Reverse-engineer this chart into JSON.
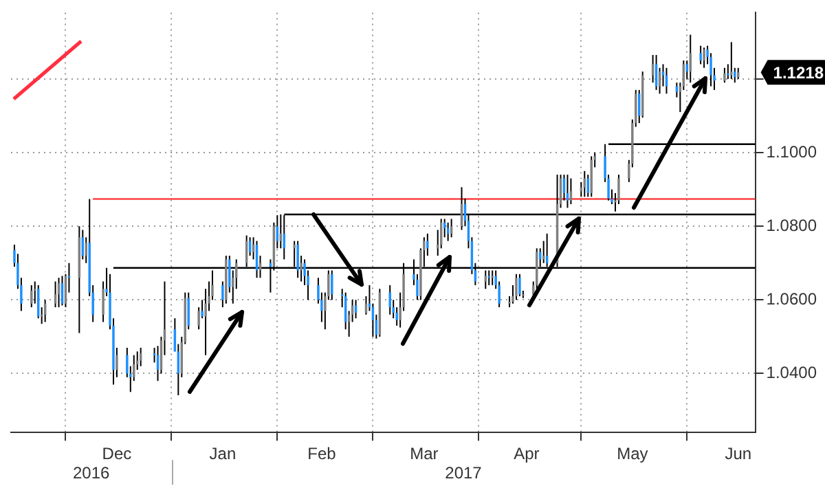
{
  "chart_data": {
    "type": "candlestick",
    "x": [
      "2016-11-16",
      "2016-11-17",
      "2016-11-18",
      "2016-11-21",
      "2016-11-22",
      "2016-11-23",
      "2016-11-24",
      "2016-11-25",
      "2016-11-28",
      "2016-11-29",
      "2016-11-30",
      "2016-12-01",
      "2016-12-02",
      "2016-12-05",
      "2016-12-06",
      "2016-12-07",
      "2016-12-08",
      "2016-12-09",
      "2016-12-12",
      "2016-12-13",
      "2016-12-14",
      "2016-12-15",
      "2016-12-16",
      "2016-12-19",
      "2016-12-20",
      "2016-12-21",
      "2016-12-22",
      "2016-12-23",
      "2016-12-27",
      "2016-12-28",
      "2016-12-29",
      "2016-12-30",
      "2017-01-02",
      "2017-01-03",
      "2017-01-04",
      "2017-01-05",
      "2017-01-06",
      "2017-01-09",
      "2017-01-10",
      "2017-01-11",
      "2017-01-12",
      "2017-01-13",
      "2017-01-16",
      "2017-01-17",
      "2017-01-18",
      "2017-01-19",
      "2017-01-20",
      "2017-01-23",
      "2017-01-24",
      "2017-01-25",
      "2017-01-26",
      "2017-01-27",
      "2017-01-30",
      "2017-01-31",
      "2017-02-01",
      "2017-02-02",
      "2017-02-03",
      "2017-02-06",
      "2017-02-07",
      "2017-02-08",
      "2017-02-09",
      "2017-02-10",
      "2017-02-13",
      "2017-02-14",
      "2017-02-15",
      "2017-02-16",
      "2017-02-17",
      "2017-02-20",
      "2017-02-21",
      "2017-02-22",
      "2017-02-23",
      "2017-02-24",
      "2017-02-27",
      "2017-02-28",
      "2017-03-01",
      "2017-03-02",
      "2017-03-03",
      "2017-03-06",
      "2017-03-07",
      "2017-03-08",
      "2017-03-09",
      "2017-03-10",
      "2017-03-13",
      "2017-03-14",
      "2017-03-15",
      "2017-03-16",
      "2017-03-17",
      "2017-03-20",
      "2017-03-21",
      "2017-03-22",
      "2017-03-23",
      "2017-03-24",
      "2017-03-27",
      "2017-03-28",
      "2017-03-29",
      "2017-03-30",
      "2017-03-31",
      "2017-04-03",
      "2017-04-04",
      "2017-04-05",
      "2017-04-06",
      "2017-04-07",
      "2017-04-10",
      "2017-04-11",
      "2017-04-12",
      "2017-04-13",
      "2017-04-14",
      "2017-04-17",
      "2017-04-18",
      "2017-04-19",
      "2017-04-20",
      "2017-04-21",
      "2017-04-24",
      "2017-04-25",
      "2017-04-26",
      "2017-04-27",
      "2017-04-28",
      "2017-05-01",
      "2017-05-02",
      "2017-05-03",
      "2017-05-04",
      "2017-05-05",
      "2017-05-08",
      "2017-05-09",
      "2017-05-10",
      "2017-05-11",
      "2017-05-12",
      "2017-05-15",
      "2017-05-16",
      "2017-05-17",
      "2017-05-18",
      "2017-05-19",
      "2017-05-22",
      "2017-05-23",
      "2017-05-24",
      "2017-05-25",
      "2017-05-26",
      "2017-05-29",
      "2017-05-30",
      "2017-05-31",
      "2017-06-01",
      "2017-06-02",
      "2017-06-05",
      "2017-06-06",
      "2017-06-07",
      "2017-06-08",
      "2017-06-09",
      "2017-06-12",
      "2017-06-13",
      "2017-06-14",
      "2017-06-15",
      "2017-06-16"
    ],
    "ohlc": [
      [
        1.0735,
        1.075,
        1.069,
        1.07
      ],
      [
        1.07,
        1.0725,
        1.063,
        1.064
      ],
      [
        1.064,
        1.066,
        1.057,
        1.059
      ],
      [
        1.059,
        1.064,
        1.058,
        1.0625
      ],
      [
        1.0625,
        1.065,
        1.059,
        1.063
      ],
      [
        1.063,
        1.064,
        1.055,
        1.0555
      ],
      [
        1.0555,
        1.058,
        1.0535,
        1.056
      ],
      [
        1.056,
        1.06,
        1.054,
        1.059
      ],
      [
        1.059,
        1.065,
        1.058,
        1.0615
      ],
      [
        1.0615,
        1.066,
        1.058,
        1.0645
      ],
      [
        1.0645,
        1.0665,
        1.0585,
        1.059
      ],
      [
        1.059,
        1.067,
        1.058,
        1.0665
      ],
      [
        1.0665,
        1.07,
        1.062,
        1.066
      ],
      [
        1.066,
        1.08,
        1.051,
        1.077
      ],
      [
        1.077,
        1.079,
        1.071,
        1.072
      ],
      [
        1.072,
        1.077,
        1.07,
        1.0755
      ],
      [
        1.0755,
        1.0874,
        1.061,
        1.062
      ],
      [
        1.062,
        1.064,
        1.054,
        1.056
      ],
      [
        1.056,
        1.065,
        1.054,
        1.063
      ],
      [
        1.063,
        1.0687,
        1.061,
        1.062
      ],
      [
        1.062,
        1.067,
        1.052,
        1.053
      ],
      [
        1.053,
        1.055,
        1.037,
        1.041
      ],
      [
        1.041,
        1.047,
        1.039,
        1.045
      ],
      [
        1.045,
        1.047,
        1.039,
        1.04
      ],
      [
        1.04,
        1.042,
        1.035,
        1.039
      ],
      [
        1.039,
        1.045,
        1.038,
        1.0425
      ],
      [
        1.0425,
        1.046,
        1.041,
        1.0435
      ],
      [
        1.0435,
        1.047,
        1.042,
        1.0455
      ],
      [
        1.0455,
        1.047,
        1.043,
        1.045
      ],
      [
        1.045,
        1.0475,
        1.038,
        1.041
      ],
      [
        1.041,
        1.05,
        1.04,
        1.049
      ],
      [
        1.049,
        1.065,
        1.045,
        1.052
      ],
      [
        1.052,
        1.055,
        1.046,
        1.046
      ],
      [
        1.046,
        1.048,
        1.0341,
        1.04
      ],
      [
        1.04,
        1.05,
        1.039,
        1.0485
      ],
      [
        1.0485,
        1.062,
        1.048,
        1.0605
      ],
      [
        1.0605,
        1.062,
        1.052,
        1.053
      ],
      [
        1.053,
        1.058,
        1.052,
        1.057
      ],
      [
        1.057,
        1.06,
        1.055,
        1.0555
      ],
      [
        1.0555,
        1.063,
        1.045,
        1.059
      ],
      [
        1.059,
        1.065,
        1.057,
        1.061
      ],
      [
        1.061,
        1.068,
        1.06,
        1.064
      ],
      [
        1.064,
        1.065,
        1.058,
        1.06
      ],
      [
        1.06,
        1.072,
        1.059,
        1.071
      ],
      [
        1.071,
        1.072,
        1.062,
        1.0635
      ],
      [
        1.0635,
        1.068,
        1.059,
        1.066
      ],
      [
        1.066,
        1.071,
        1.063,
        1.07
      ],
      [
        1.07,
        1.0775,
        1.069,
        1.076
      ],
      [
        1.076,
        1.077,
        1.072,
        1.073
      ],
      [
        1.073,
        1.077,
        1.071,
        1.075
      ],
      [
        1.075,
        1.076,
        1.066,
        1.068
      ],
      [
        1.068,
        1.072,
        1.066,
        1.07
      ],
      [
        1.07,
        1.071,
        1.062,
        1.069
      ],
      [
        1.069,
        1.081,
        1.068,
        1.08
      ],
      [
        1.08,
        1.083,
        1.074,
        1.076
      ],
      [
        1.076,
        1.0832,
        1.074,
        1.078
      ],
      [
        1.078,
        1.083,
        1.071,
        1.074
      ],
      [
        1.074,
        1.076,
        1.069,
        1.075
      ],
      [
        1.075,
        1.076,
        1.066,
        1.068
      ],
      [
        1.068,
        1.072,
        1.065,
        1.07
      ],
      [
        1.07,
        1.071,
        1.064,
        1.0665
      ],
      [
        1.0665,
        1.068,
        1.06,
        1.064
      ],
      [
        1.064,
        1.066,
        1.059,
        1.06
      ],
      [
        1.06,
        1.062,
        1.054,
        1.057
      ],
      [
        1.057,
        1.062,
        1.052,
        1.061
      ],
      [
        1.061,
        1.068,
        1.06,
        1.067
      ],
      [
        1.067,
        1.068,
        1.06,
        1.0615
      ],
      [
        1.0615,
        1.063,
        1.058,
        1.061
      ],
      [
        1.061,
        1.062,
        1.052,
        1.054
      ],
      [
        1.054,
        1.057,
        1.05,
        1.056
      ],
      [
        1.056,
        1.06,
        1.054,
        1.0585
      ],
      [
        1.0585,
        1.06,
        1.055,
        1.0565
      ],
      [
        1.0565,
        1.061,
        1.056,
        1.059
      ],
      [
        1.059,
        1.064,
        1.057,
        1.058
      ],
      [
        1.058,
        1.059,
        1.05,
        1.0545
      ],
      [
        1.0545,
        1.056,
        1.0495,
        1.0505
      ],
      [
        1.0505,
        1.063,
        1.05,
        1.062
      ],
      [
        1.062,
        1.064,
        1.056,
        1.058
      ],
      [
        1.058,
        1.06,
        1.055,
        1.0565
      ],
      [
        1.0565,
        1.058,
        1.053,
        1.0545
      ],
      [
        1.0545,
        1.062,
        1.0525,
        1.058
      ],
      [
        1.058,
        1.07,
        1.057,
        1.067
      ],
      [
        1.067,
        1.071,
        1.064,
        1.0655
      ],
      [
        1.0655,
        1.067,
        1.06,
        1.061
      ],
      [
        1.061,
        1.074,
        1.06,
        1.0735
      ],
      [
        1.0735,
        1.077,
        1.069,
        1.076
      ],
      [
        1.076,
        1.078,
        1.072,
        1.074
      ],
      [
        1.074,
        1.079,
        1.072,
        1.075
      ],
      [
        1.075,
        1.082,
        1.074,
        1.081
      ],
      [
        1.081,
        1.082,
        1.077,
        1.0795
      ],
      [
        1.0795,
        1.081,
        1.076,
        1.078
      ],
      [
        1.078,
        1.082,
        1.077,
        1.08
      ],
      [
        1.08,
        1.0906,
        1.079,
        1.086
      ],
      [
        1.086,
        1.0875,
        1.08,
        1.0815
      ],
      [
        1.0815,
        1.083,
        1.074,
        1.076
      ],
      [
        1.076,
        1.077,
        1.067,
        1.068
      ],
      [
        1.068,
        1.07,
        1.064,
        1.065
      ],
      [
        1.065,
        1.068,
        1.063,
        1.0665
      ],
      [
        1.0665,
        1.068,
        1.064,
        1.066
      ],
      [
        1.066,
        1.068,
        1.064,
        1.0665
      ],
      [
        1.0665,
        1.068,
        1.063,
        1.064
      ],
      [
        1.064,
        1.065,
        1.058,
        1.059
      ],
      [
        1.059,
        1.061,
        1.058,
        1.0595
      ],
      [
        1.0595,
        1.064,
        1.059,
        1.061
      ],
      [
        1.061,
        1.067,
        1.06,
        1.066
      ],
      [
        1.066,
        1.067,
        1.061,
        1.0615
      ],
      [
        1.0615,
        1.0625,
        1.0605,
        1.0615
      ],
      [
        1.0615,
        1.065,
        1.06,
        1.064
      ],
      [
        1.064,
        1.074,
        1.063,
        1.073
      ],
      [
        1.073,
        1.074,
        1.069,
        1.071
      ],
      [
        1.071,
        1.076,
        1.07,
        1.072
      ],
      [
        1.072,
        1.078,
        1.069,
        1.07
      ],
      [
        1.07,
        1.094,
        1.069,
        1.086
      ],
      [
        1.086,
        1.094,
        1.085,
        1.093
      ],
      [
        1.093,
        1.094,
        1.087,
        1.089
      ],
      [
        1.089,
        1.094,
        1.085,
        1.087
      ],
      [
        1.087,
        1.093,
        1.086,
        1.0895
      ],
      [
        1.0895,
        1.092,
        1.088,
        1.0905
      ],
      [
        1.0905,
        1.095,
        1.088,
        1.093
      ],
      [
        1.093,
        1.094,
        1.088,
        1.089
      ],
      [
        1.089,
        1.099,
        1.088,
        1.098
      ],
      [
        1.098,
        1.1,
        1.096,
        1.099
      ],
      [
        1.099,
        1.1023,
        1.092,
        1.093
      ],
      [
        1.093,
        1.094,
        1.087,
        1.0875
      ],
      [
        1.0875,
        1.09,
        1.086,
        1.0865
      ],
      [
        1.0865,
        1.089,
        1.084,
        1.087
      ],
      [
        1.087,
        1.094,
        1.086,
        1.093
      ],
      [
        1.093,
        1.098,
        1.092,
        1.097
      ],
      [
        1.097,
        1.109,
        1.096,
        1.108
      ],
      [
        1.108,
        1.117,
        1.107,
        1.116
      ],
      [
        1.116,
        1.117,
        1.108,
        1.11
      ],
      [
        1.11,
        1.122,
        1.1095,
        1.121
      ],
      [
        1.121,
        1.1265,
        1.119,
        1.124
      ],
      [
        1.124,
        1.1265,
        1.117,
        1.118
      ],
      [
        1.118,
        1.123,
        1.116,
        1.122
      ],
      [
        1.122,
        1.124,
        1.118,
        1.121
      ],
      [
        1.121,
        1.123,
        1.116,
        1.118
      ],
      [
        1.118,
        1.119,
        1.115,
        1.1165
      ],
      [
        1.1165,
        1.119,
        1.111,
        1.118
      ],
      [
        1.118,
        1.125,
        1.117,
        1.124
      ],
      [
        1.124,
        1.125,
        1.12,
        1.122
      ],
      [
        1.122,
        1.132,
        1.119,
        1.127
      ],
      [
        1.127,
        1.129,
        1.124,
        1.125
      ],
      [
        1.125,
        1.1285,
        1.123,
        1.128
      ],
      [
        1.128,
        1.129,
        1.124,
        1.126
      ],
      [
        1.126,
        1.127,
        1.118,
        1.121
      ],
      [
        1.121,
        1.123,
        1.117,
        1.1195
      ],
      [
        1.1195,
        1.123,
        1.119,
        1.1215
      ],
      [
        1.1215,
        1.124,
        1.12,
        1.121
      ],
      [
        1.121,
        1.13,
        1.12,
        1.122
      ],
      [
        1.122,
        1.123,
        1.119,
        1.1205
      ],
      [
        1.1205,
        1.123,
        1.12,
        1.1218
      ]
    ],
    "colors": [
      "#1e90ff",
      "#1e90ff",
      "#1e90ff",
      "#808080",
      "#808080",
      "#1e90ff",
      "#808080",
      "#808080",
      "#808080",
      "#808080",
      "#1e90ff",
      "#808080",
      "#1e90ff",
      "#808080",
      "#1e90ff",
      "#808080",
      "#1e90ff",
      "#1e90ff",
      "#808080",
      "#1e90ff",
      "#1e90ff",
      "#1e90ff",
      "#808080",
      "#1e90ff",
      "#1e90ff",
      "#808080",
      "#808080",
      "#808080",
      "#1e90ff",
      "#1e90ff",
      "#808080",
      "#808080",
      "#1e90ff",
      "#1e90ff",
      "#808080",
      "#808080",
      "#1e90ff",
      "#808080",
      "#1e90ff",
      "#808080",
      "#808080",
      "#808080",
      "#1e90ff",
      "#808080",
      "#1e90ff",
      "#808080",
      "#808080",
      "#808080",
      "#1e90ff",
      "#808080",
      "#1e90ff",
      "#808080",
      "#1e90ff",
      "#808080",
      "#1e90ff",
      "#808080",
      "#1e90ff",
      "#808080",
      "#1e90ff",
      "#808080",
      "#1e90ff",
      "#1e90ff",
      "#1e90ff",
      "#1e90ff",
      "#808080",
      "#808080",
      "#1e90ff",
      "#1e90ff",
      "#1e90ff",
      "#808080",
      "#808080",
      "#1e90ff",
      "#808080",
      "#1e90ff",
      "#1e90ff",
      "#1e90ff",
      "#808080",
      "#1e90ff",
      "#1e90ff",
      "#1e90ff",
      "#808080",
      "#808080",
      "#1e90ff",
      "#1e90ff",
      "#808080",
      "#808080",
      "#1e90ff",
      "#808080",
      "#808080",
      "#1e90ff",
      "#1e90ff",
      "#808080",
      "#808080",
      "#1e90ff",
      "#1e90ff",
      "#1e90ff",
      "#1e90ff",
      "#808080",
      "#1e90ff",
      "#808080",
      "#1e90ff",
      "#1e90ff",
      "#808080",
      "#808080",
      "#808080",
      "#1e90ff",
      "#808080",
      "#808080",
      "#808080",
      "#1e90ff",
      "#808080",
      "#1e90ff",
      "#808080",
      "#808080",
      "#1e90ff",
      "#1e90ff",
      "#808080",
      "#808080",
      "#808080",
      "#1e90ff",
      "#808080",
      "#808080",
      "#1e90ff",
      "#1e90ff",
      "#1e90ff",
      "#808080",
      "#808080",
      "#808080",
      "#808080",
      "#808080",
      "#1e90ff",
      "#808080",
      "#808080",
      "#1e90ff",
      "#808080",
      "#1e90ff",
      "#1e90ff",
      "#1e90ff",
      "#808080",
      "#808080",
      "#1e90ff",
      "#808080",
      "#1e90ff",
      "#808080",
      "#1e90ff",
      "#1e90ff",
      "#1e90ff",
      "#808080",
      "#1e90ff",
      "#808080",
      "#1e90ff",
      "#808080"
    ],
    "series": [
      {
        "type": "line",
        "color": "#ff4040",
        "x": [
          "2016-12-09",
          "2017-06-21"
        ],
        "values": [
          1.0874,
          1.0874
        ]
      },
      {
        "type": "line",
        "color": "#000000",
        "x": [
          "2016-12-15",
          "2017-06-21"
        ],
        "values": [
          1.0687,
          1.0687
        ]
      },
      {
        "type": "line",
        "color": "#000000",
        "x": [
          "2017-02-03",
          "2017-06-21"
        ],
        "values": [
          1.0832,
          1.0832
        ]
      },
      {
        "type": "line",
        "color": "#000000",
        "x": [
          "2017-05-09",
          "2017-06-21"
        ],
        "values": [
          1.1023,
          1.1023
        ]
      }
    ],
    "xlim": [
      "2016-11-15",
      "2017-06-21"
    ],
    "xticks": [
      {
        "value": "2016-12-01",
        "label": null
      },
      {
        "value": "2016-12-16",
        "label": "Dec"
      },
      {
        "value": "2017-01-01",
        "label": null
      },
      {
        "value": "2017-01-16",
        "label": "Jan"
      },
      {
        "value": "2017-02-01",
        "label": null
      },
      {
        "value": "2017-02-14",
        "label": "Feb"
      },
      {
        "value": "2017-03-01",
        "label": null
      },
      {
        "value": "2017-03-16",
        "label": "Mar"
      },
      {
        "value": "2017-04-01",
        "label": null
      },
      {
        "value": "2017-04-15",
        "label": "Apr"
      },
      {
        "value": "2017-05-01",
        "label": null
      },
      {
        "value": "2017-05-16",
        "label": "May"
      },
      {
        "value": "2017-06-01",
        "label": null
      },
      {
        "value": "2017-06-16",
        "label": "Jun"
      }
    ],
    "ylim": [
      1.024,
      1.138
    ],
    "yticks": [
      {
        "value": 1.04,
        "label": "1.0400"
      },
      {
        "value": 1.06,
        "label": "1.0600"
      },
      {
        "value": 1.08,
        "label": "1.0800"
      },
      {
        "value": 1.1,
        "label": "1.1000"
      },
      {
        "value": 1.12,
        "label": null
      }
    ],
    "annotations": [
      "2016",
      "2017",
      "1.1218"
    ],
    "grid": true,
    "legend": false
  }
}
